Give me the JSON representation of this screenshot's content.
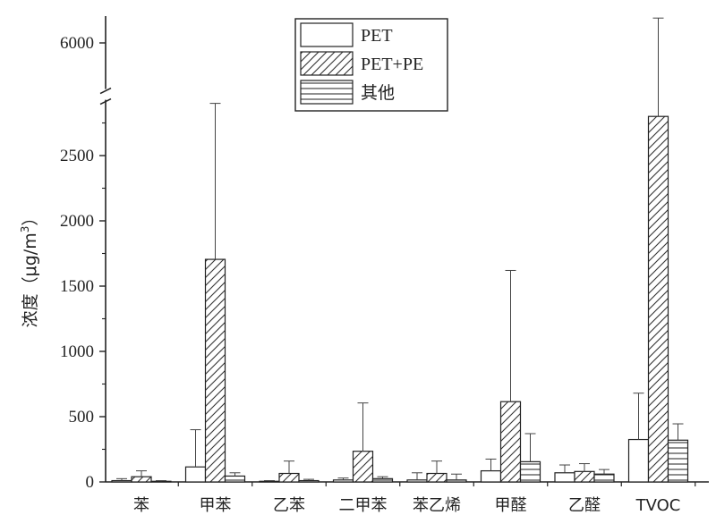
{
  "chart_data": {
    "type": "bar",
    "ylabel": "浓度（μg/m3）",
    "ylabel_parts": {
      "prefix": "浓度（μg/m",
      "sup": "3",
      "suffix": "）"
    },
    "categories": [
      "苯",
      "甲苯",
      "乙苯",
      "二甲苯",
      "苯乙烯",
      "甲醛",
      "乙醛",
      "TVOC"
    ],
    "series": [
      {
        "name": "PET",
        "pattern": "blank",
        "values": [
          10,
          115,
          5,
          15,
          15,
          85,
          70,
          325
        ],
        "errors": [
          15,
          285,
          5,
          15,
          55,
          90,
          60,
          355
        ]
      },
      {
        "name": "PET+PE",
        "pattern": "diagonal",
        "values": [
          40,
          1705,
          65,
          235,
          65,
          615,
          80,
          2800
        ],
        "errors": [
          45,
          3505,
          95,
          370,
          95,
          1005,
          60,
          3300
        ]
      },
      {
        "name": "其他",
        "pattern": "horizontal",
        "values": [
          5,
          45,
          10,
          25,
          15,
          155,
          60,
          320
        ],
        "errors": [
          5,
          25,
          10,
          15,
          45,
          215,
          35,
          125
        ]
      }
    ],
    "y_ticks": [
      "0",
      "500",
      "1000",
      "1500",
      "2000",
      "2500",
      "6000"
    ],
    "ylim": [
      0,
      6300
    ],
    "axis_break": [
      2900,
      5800
    ],
    "legend_position": "top-center",
    "grid": false
  }
}
